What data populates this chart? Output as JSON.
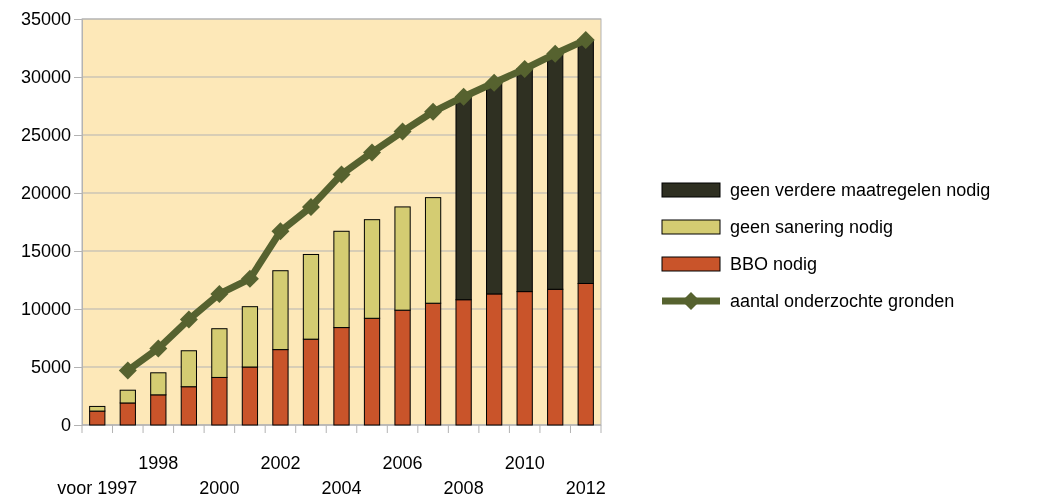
{
  "chart_data": {
    "type": "bar",
    "stacked": true,
    "categories": [
      "voor 1997",
      null,
      "1998",
      null,
      "2000",
      null,
      "2002",
      null,
      "2004",
      null,
      "2006",
      null,
      "2008",
      null,
      "2010",
      null,
      "2012"
    ],
    "series": [
      {
        "name": "BBO nodig",
        "color": "#c9542a",
        "values": [
          1200,
          1900,
          2600,
          3300,
          4100,
          5000,
          6500,
          7400,
          8400,
          9200,
          9900,
          10500,
          10800,
          11300,
          11500,
          11700,
          12200
        ]
      },
      {
        "name": "geen sanering nodig",
        "color": "#d4cc72",
        "values": [
          400,
          1100,
          1900,
          3100,
          4200,
          5200,
          6800,
          7300,
          8300,
          8500,
          8900,
          9100,
          null,
          null,
          null,
          null,
          null
        ]
      },
      {
        "name": "geen verdere maatregelen nodig",
        "color": "#2f3022",
        "values": [
          null,
          null,
          null,
          null,
          null,
          null,
          null,
          null,
          null,
          null,
          null,
          null,
          17500,
          18200,
          19200,
          20300,
          21000
        ]
      },
      {
        "name": "aantal onderzochte gronden",
        "type": "line",
        "color": "#56622f",
        "marker": "diamond",
        "values": [
          null,
          4700,
          6600,
          9100,
          11300,
          12600,
          16700,
          18800,
          21600,
          23500,
          25300,
          27000,
          28300,
          29500,
          30700,
          32000,
          33200
        ]
      }
    ],
    "ylim": [
      0,
      35000
    ],
    "yticks": [
      0,
      5000,
      10000,
      15000,
      20000,
      25000,
      30000,
      35000
    ],
    "grid": "y",
    "legend": "right"
  }
}
